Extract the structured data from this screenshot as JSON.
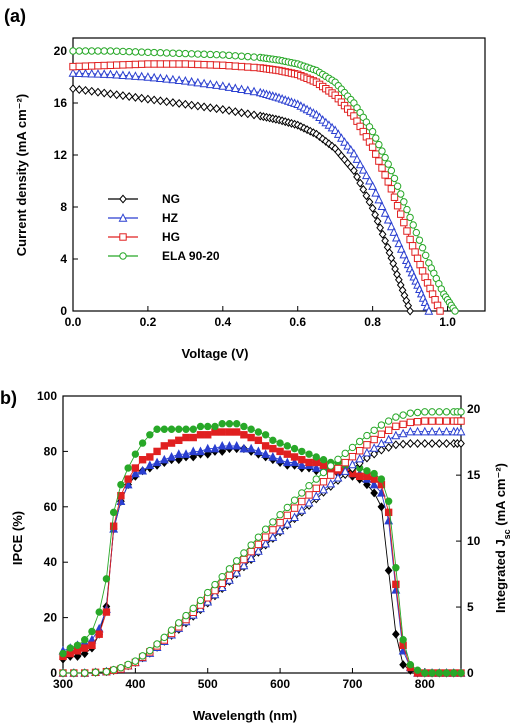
{
  "chart_data": [
    {
      "panel_label": "(a)",
      "type": "line",
      "xlabel": "Voltage (V)",
      "ylabel": "Current density (mA cm⁻²)",
      "xlim": [
        0,
        1.1
      ],
      "ylim": [
        0,
        21
      ],
      "xticks": [
        "0.0",
        "0.2",
        "0.4",
        "0.6",
        "0.8",
        "1.0"
      ],
      "yticks": [
        "0",
        "4",
        "8",
        "12",
        "16",
        "20"
      ],
      "legend_position": "lower-left",
      "series": [
        {
          "name": "NG",
          "color": "#000000",
          "marker": "diamond",
          "x": [
            0,
            0.1,
            0.2,
            0.3,
            0.4,
            0.5,
            0.55,
            0.6,
            0.65,
            0.7,
            0.75,
            0.8,
            0.84,
            0.87,
            0.9
          ],
          "y": [
            17.1,
            16.7,
            16.3,
            15.9,
            15.5,
            15.0,
            14.7,
            14.3,
            13.6,
            12.5,
            10.8,
            7.9,
            4.9,
            2.4,
            0
          ]
        },
        {
          "name": "HZ",
          "color": "#2a3fd0",
          "marker": "triangle",
          "x": [
            0,
            0.1,
            0.2,
            0.3,
            0.4,
            0.5,
            0.55,
            0.6,
            0.65,
            0.7,
            0.75,
            0.8,
            0.85,
            0.89,
            0.92,
            0.95
          ],
          "y": [
            18.3,
            18.2,
            18.0,
            17.7,
            17.3,
            16.8,
            16.4,
            15.9,
            15.1,
            13.9,
            12.1,
            9.6,
            6.5,
            3.9,
            2.0,
            0
          ]
        },
        {
          "name": "HG",
          "color": "#e02020",
          "marker": "square",
          "x": [
            0,
            0.1,
            0.2,
            0.3,
            0.4,
            0.5,
            0.55,
            0.6,
            0.65,
            0.7,
            0.75,
            0.8,
            0.85,
            0.9,
            0.94,
            0.98
          ],
          "y": [
            18.8,
            18.9,
            19.0,
            19.0,
            18.9,
            18.7,
            18.5,
            18.2,
            17.6,
            16.6,
            15.0,
            12.6,
            9.4,
            5.5,
            2.6,
            0
          ]
        },
        {
          "name": "ELA 90-20",
          "color": "#28a828",
          "marker": "circle",
          "x": [
            0,
            0.1,
            0.2,
            0.3,
            0.4,
            0.5,
            0.55,
            0.6,
            0.65,
            0.7,
            0.75,
            0.8,
            0.85,
            0.9,
            0.95,
            0.99,
            1.02
          ],
          "y": [
            20.0,
            20.0,
            19.9,
            19.8,
            19.7,
            19.5,
            19.3,
            19.0,
            18.5,
            17.6,
            16.0,
            13.8,
            10.8,
            7.2,
            3.7,
            1.3,
            0
          ]
        }
      ]
    },
    {
      "panel_label": "b)",
      "type": "line",
      "xlabel": "Wavelength (nm)",
      "ylabel": "IPCE (%)",
      "ylabel_right": "Integrated J",
      "ylabel_right_sub": "sc",
      "ylabel_right_unit": " (mA cm⁻²)",
      "xlim": [
        300,
        850
      ],
      "ylim": [
        0,
        100
      ],
      "y2lim": [
        0,
        21
      ],
      "xticks": [
        "300",
        "400",
        "500",
        "600",
        "700",
        "800"
      ],
      "yticks": [
        "0",
        "20",
        "40",
        "60",
        "80",
        "100"
      ],
      "y2ticks": [
        "0",
        "5",
        "10",
        "15",
        "20"
      ],
      "series": [
        {
          "name": "NG",
          "color": "#000000",
          "marker": "diamond",
          "axis": "left",
          "x": [
            300,
            310,
            320,
            330,
            340,
            350,
            360,
            370,
            380,
            390,
            400,
            410,
            420,
            430,
            440,
            450,
            460,
            470,
            480,
            490,
            500,
            510,
            520,
            530,
            540,
            550,
            560,
            570,
            580,
            590,
            600,
            610,
            620,
            630,
            640,
            650,
            660,
            670,
            680,
            690,
            700,
            710,
            720,
            730,
            740,
            750,
            760,
            770,
            780,
            790,
            800,
            810,
            820,
            830,
            840,
            850
          ],
          "y": [
            5,
            6,
            6,
            7,
            9,
            14,
            24,
            52,
            62,
            68,
            71,
            73,
            74,
            75,
            76,
            77,
            77,
            78,
            78,
            79,
            79,
            80,
            80,
            81,
            81,
            81,
            80,
            79,
            78,
            77,
            76,
            75,
            75,
            74,
            74,
            73,
            73,
            72,
            72,
            72,
            71,
            70,
            68,
            65,
            60,
            37,
            14,
            3,
            1,
            0,
            0,
            0,
            0,
            0,
            0,
            0
          ]
        },
        {
          "name": "HZ",
          "color": "#2a3fd0",
          "marker": "triangle",
          "axis": "left",
          "x": [
            300,
            310,
            320,
            330,
            340,
            350,
            360,
            370,
            380,
            390,
            400,
            410,
            420,
            430,
            440,
            450,
            460,
            470,
            480,
            490,
            500,
            510,
            520,
            530,
            540,
            550,
            560,
            570,
            580,
            590,
            600,
            610,
            620,
            630,
            640,
            650,
            660,
            670,
            680,
            690,
            700,
            710,
            720,
            730,
            740,
            750,
            760,
            770,
            780,
            790,
            800,
            810,
            820,
            830,
            840,
            850
          ],
          "y": [
            8,
            9,
            10,
            11,
            12,
            16,
            23,
            52,
            62,
            68,
            72,
            73,
            75,
            76,
            77,
            78,
            79,
            79,
            80,
            80,
            81,
            81,
            82,
            82,
            82,
            81,
            81,
            80,
            79,
            78,
            77,
            76,
            76,
            75,
            75,
            74,
            74,
            73,
            73,
            73,
            72,
            72,
            70,
            68,
            65,
            55,
            30,
            8,
            2,
            0,
            0,
            0,
            0,
            0,
            0,
            0
          ]
        },
        {
          "name": "HG",
          "color": "#e02020",
          "marker": "square",
          "axis": "left",
          "x": [
            300,
            310,
            320,
            330,
            340,
            350,
            360,
            370,
            380,
            390,
            400,
            410,
            420,
            430,
            440,
            450,
            460,
            470,
            480,
            490,
            500,
            510,
            520,
            530,
            540,
            550,
            560,
            570,
            580,
            590,
            600,
            610,
            620,
            630,
            640,
            650,
            660,
            670,
            680,
            690,
            700,
            710,
            720,
            730,
            740,
            750,
            760,
            770,
            780,
            790,
            800,
            810,
            820,
            830,
            840,
            850
          ],
          "y": [
            6,
            7,
            8,
            9,
            10,
            14,
            22,
            53,
            64,
            70,
            74,
            77,
            78,
            80,
            82,
            83,
            84,
            85,
            85,
            86,
            86,
            87,
            87,
            87,
            87,
            86,
            85,
            84,
            82,
            81,
            80,
            79,
            78,
            77,
            76,
            76,
            75,
            74,
            73,
            73,
            72,
            71,
            71,
            70,
            68,
            58,
            32,
            10,
            2,
            0,
            0,
            0,
            0,
            0,
            0,
            0
          ]
        },
        {
          "name": "ELA 90-20",
          "color": "#28a828",
          "marker": "circle",
          "axis": "left",
          "x": [
            300,
            310,
            320,
            330,
            340,
            350,
            360,
            370,
            380,
            390,
            400,
            410,
            420,
            430,
            440,
            450,
            460,
            470,
            480,
            490,
            500,
            510,
            520,
            530,
            540,
            550,
            560,
            570,
            580,
            590,
            600,
            610,
            620,
            630,
            640,
            650,
            660,
            670,
            680,
            690,
            700,
            710,
            720,
            730,
            740,
            750,
            760,
            770,
            780,
            790,
            800,
            810,
            820,
            830,
            840,
            850
          ],
          "y": [
            7,
            9,
            10,
            12,
            15,
            22,
            34,
            58,
            68,
            74,
            79,
            83,
            86,
            88,
            88,
            88,
            88,
            88,
            88,
            89,
            89,
            89,
            90,
            90,
            90,
            89,
            88,
            87,
            86,
            84,
            83,
            82,
            81,
            80,
            79,
            78,
            77,
            76,
            76,
            75,
            74,
            74,
            73,
            72,
            70,
            62,
            38,
            12,
            3,
            1,
            0,
            0,
            0,
            0,
            0,
            0
          ]
        },
        {
          "name": "NG",
          "color": "#000000",
          "marker": "open-diamond",
          "axis": "right",
          "x": [
            300,
            330,
            360,
            380,
            400,
            420,
            440,
            460,
            480,
            500,
            520,
            540,
            560,
            580,
            600,
            620,
            640,
            660,
            680,
            700,
            720,
            740,
            760,
            780,
            800,
            820,
            840,
            850
          ],
          "y": [
            0,
            0,
            0.1,
            0.3,
            0.8,
            1.5,
            2.4,
            3.3,
            4.3,
            5.3,
            6.4,
            7.5,
            8.6,
            9.7,
            10.7,
            11.7,
            12.7,
            13.7,
            14.6,
            15.5,
            16.3,
            16.9,
            17.3,
            17.4,
            17.4,
            17.4,
            17.4,
            17.4
          ]
        },
        {
          "name": "HZ",
          "color": "#2a3fd0",
          "marker": "open-triangle",
          "axis": "right",
          "x": [
            300,
            330,
            360,
            380,
            400,
            420,
            440,
            460,
            480,
            500,
            520,
            540,
            560,
            580,
            600,
            620,
            640,
            660,
            680,
            700,
            720,
            740,
            760,
            780,
            800,
            820,
            840,
            850
          ],
          "y": [
            0,
            0,
            0.1,
            0.3,
            0.8,
            1.5,
            2.4,
            3.4,
            4.4,
            5.4,
            6.5,
            7.6,
            8.7,
            9.8,
            10.8,
            11.8,
            12.9,
            13.9,
            14.8,
            15.8,
            16.7,
            17.4,
            18.0,
            18.3,
            18.3,
            18.3,
            18.3,
            18.3
          ]
        },
        {
          "name": "HG",
          "color": "#e02020",
          "marker": "open-square",
          "axis": "right",
          "x": [
            300,
            330,
            360,
            380,
            400,
            420,
            440,
            460,
            480,
            500,
            520,
            540,
            560,
            580,
            600,
            620,
            640,
            660,
            680,
            700,
            720,
            740,
            760,
            780,
            800,
            820,
            840,
            850
          ],
          "y": [
            0,
            0,
            0.1,
            0.3,
            0.8,
            1.6,
            2.5,
            3.5,
            4.6,
            5.7,
            6.8,
            8.0,
            9.2,
            10.3,
            11.4,
            12.5,
            13.5,
            14.5,
            15.5,
            16.4,
            17.3,
            18.1,
            18.7,
            19.0,
            19.1,
            19.1,
            19.1,
            19.1
          ]
        },
        {
          "name": "ELA 90-20",
          "color": "#28a828",
          "marker": "open-circle",
          "axis": "right",
          "x": [
            300,
            330,
            360,
            380,
            400,
            420,
            440,
            460,
            480,
            500,
            520,
            540,
            560,
            580,
            600,
            620,
            640,
            660,
            680,
            700,
            720,
            740,
            760,
            780,
            800,
            820,
            840,
            850
          ],
          "y": [
            0,
            0,
            0.1,
            0.4,
            0.9,
            1.7,
            2.7,
            3.8,
            4.9,
            6.1,
            7.3,
            8.5,
            9.7,
            10.9,
            12.0,
            13.1,
            14.2,
            15.2,
            16.2,
            17.1,
            18.0,
            18.8,
            19.4,
            19.7,
            19.8,
            19.8,
            19.8,
            19.8
          ]
        }
      ]
    }
  ]
}
